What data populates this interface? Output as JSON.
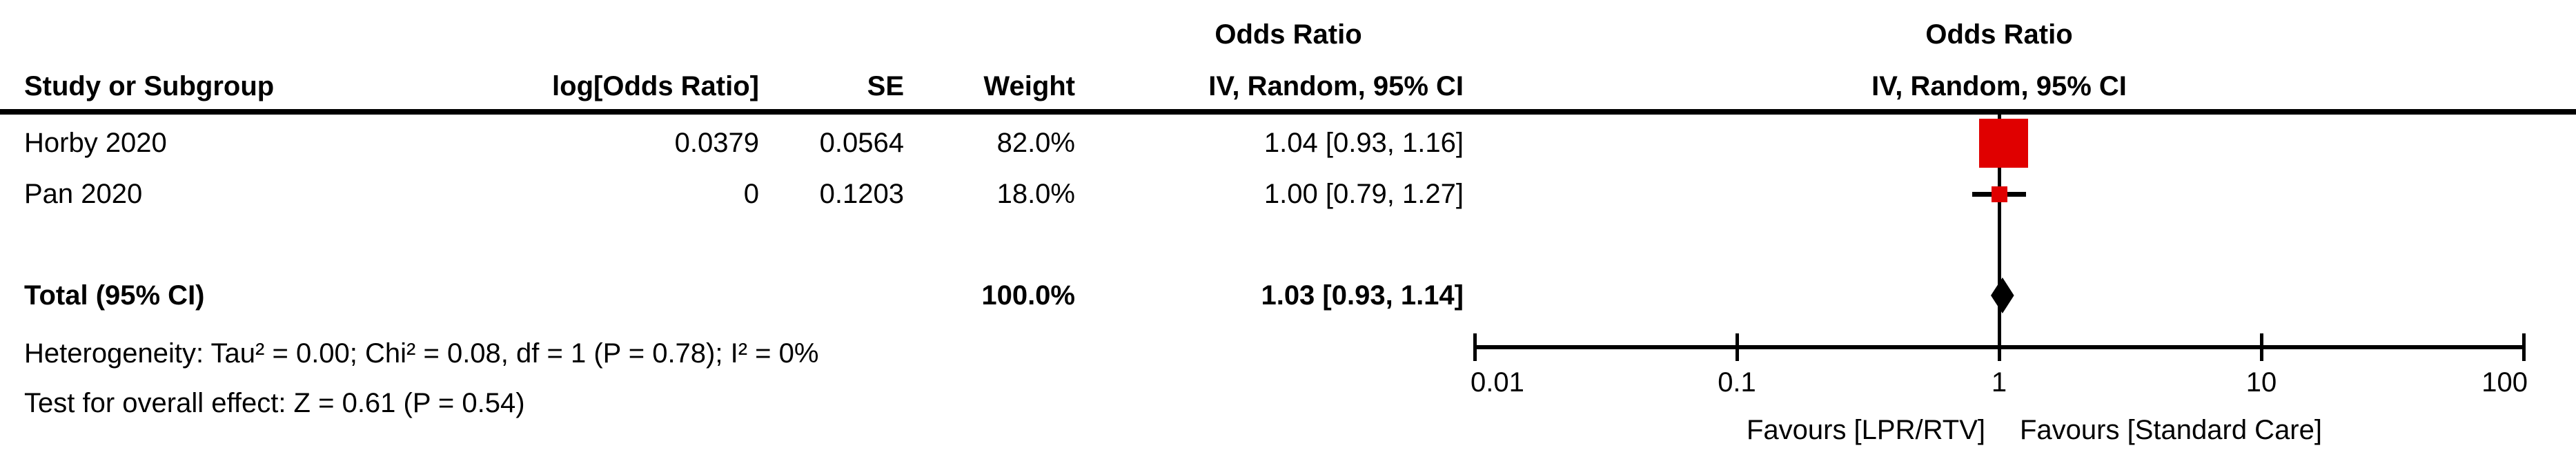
{
  "table": {
    "effect_header": "Odds Ratio",
    "col1_header": "Study or Subgroup",
    "col2_header": "log[Odds Ratio]",
    "col3_header": "SE",
    "col4_header": "Weight",
    "col5_header": "IV, Random, 95% CI",
    "rows": [
      {
        "study": "Horby 2020",
        "log_or": "0.0379",
        "se": "0.0564",
        "weight": "82.0%",
        "estimate_ci": "1.04 [0.93, 1.16]"
      },
      {
        "study": "Pan 2020",
        "log_or": "0",
        "se": "0.1203",
        "weight": "18.0%",
        "estimate_ci": "1.00 [0.79, 1.27]"
      }
    ],
    "total": {
      "label": "Total (95% CI)",
      "weight": "100.0%",
      "estimate_ci": "1.03 [0.93, 1.14]"
    }
  },
  "footer": {
    "heterogeneity": "Heterogeneity: Tau² = 0.00; Chi² = 0.08, df = 1 (P = 0.78); I² = 0%",
    "overall_effect": "Test for overall effect: Z = 0.61 (P = 0.54)"
  },
  "plot": {
    "effect_header": "Odds Ratio",
    "method_header": "IV, Random, 95% CI",
    "favours_left": "Favours [LPR/RTV]",
    "favours_right": "Favours [Standard Care]"
  },
  "chart_data": {
    "type": "forest",
    "scale": "log10",
    "xlim": [
      0.01,
      100
    ],
    "ticks": [
      0.01,
      0.1,
      1,
      10,
      100
    ],
    "null_line": 1,
    "effect_measure": "Odds Ratio, IV, Random, 95% CI",
    "studies": [
      {
        "name": "Horby 2020",
        "or": 1.04,
        "ci_low": 0.93,
        "ci_high": 1.16,
        "weight_pct": 82.0
      },
      {
        "name": "Pan 2020",
        "or": 1.0,
        "ci_low": 0.79,
        "ci_high": 1.27,
        "weight_pct": 18.0
      }
    ],
    "total": {
      "name": "Total (95% CI)",
      "or": 1.03,
      "ci_low": 0.93,
      "ci_high": 1.14,
      "weight_pct": 100.0
    },
    "heterogeneity": {
      "tau2": 0.0,
      "chi2": 0.08,
      "df": 1,
      "p": 0.78,
      "i2_pct": 0
    },
    "overall_effect": {
      "z": 0.61,
      "p": 0.54
    },
    "marker_color": "#e00000",
    "diamond_color": "#000000",
    "axis_color": "#000000"
  }
}
